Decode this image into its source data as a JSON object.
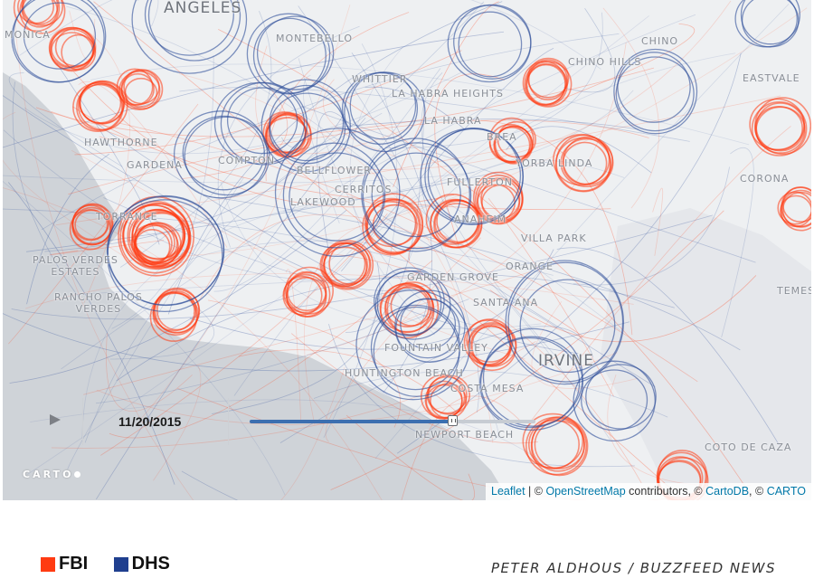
{
  "map": {
    "colors": {
      "fbi": "#ff3b12",
      "dhs": "#2f4e9a",
      "land": "#eef0f2",
      "water": "#cfd3d8"
    },
    "places": [
      {
        "label": "ANGELES",
        "big": true
      },
      {
        "label": "MONICA"
      },
      {
        "label": "MONTEBELLO"
      },
      {
        "label": "CHINO"
      },
      {
        "label": "CHINO HILLS"
      },
      {
        "label": "WHITTIER"
      },
      {
        "label": "LA HABRA HEIGHTS"
      },
      {
        "label": "EASTVALE"
      },
      {
        "label": "LA HABRA"
      },
      {
        "label": "HAWTHORNE"
      },
      {
        "label": "GARDENA"
      },
      {
        "label": "COMPTON"
      },
      {
        "label": "BREA"
      },
      {
        "label": "YORBA LINDA"
      },
      {
        "label": "BELLFLOWER"
      },
      {
        "label": "CERRITOS"
      },
      {
        "label": "FULLERTON"
      },
      {
        "label": "CORONA"
      },
      {
        "label": "LAKEWOOD"
      },
      {
        "label": "TORRANCE"
      },
      {
        "label": "ANAHEIM"
      },
      {
        "label": "VILLA PARK"
      },
      {
        "label": "PALOS VERDES\nESTATES"
      },
      {
        "label": "ORANGE"
      },
      {
        "label": "GARDEN GROVE"
      },
      {
        "label": "TEMES"
      },
      {
        "label": "RANCHO PALOS\nVERDES"
      },
      {
        "label": "SANTA ANA"
      },
      {
        "label": "FOUNTAIN VALLEY"
      },
      {
        "label": "IRVINE",
        "big": true
      },
      {
        "label": "HUNTINGTON BEACH"
      },
      {
        "label": "COSTA MESA"
      },
      {
        "label": "NEWPORT BEACH"
      },
      {
        "label": "COTO DE CAZA"
      }
    ]
  },
  "timeline": {
    "date": "11/20/2015",
    "progress": 0.71,
    "play_icon": "play-icon"
  },
  "logo": {
    "text": "CARTO"
  },
  "attribution": {
    "leaflet": "Leaflet",
    "sep1": " | © ",
    "osm": "OpenStreetMap",
    "contributors": " contributors, © ",
    "cartodb": "CartoDB",
    "sep2": ", © ",
    "carto": "CARTO"
  },
  "legend": [
    {
      "label": "FBI",
      "color": "#ff3b12"
    },
    {
      "label": "DHS",
      "color": "#1f3f8f"
    }
  ],
  "credit": "PETER ALDHOUS / BUZZFEED NEWS"
}
